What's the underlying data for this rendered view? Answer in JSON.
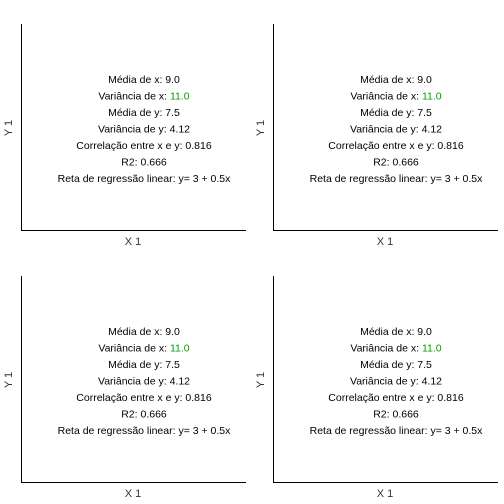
{
  "chart_data": [
    {
      "type": "scatter",
      "xlabel": "X 1",
      "ylabel": "Y 1",
      "stats": {
        "mean_x": {
          "label": "Média de x: ",
          "value": "9.0"
        },
        "var_x": {
          "label": "Variância de x: ",
          "value": "11.0"
        },
        "mean_y": {
          "label": "Média de y: ",
          "value": "7.5"
        },
        "var_y": {
          "label": "Variância de y: ",
          "value": "4.12"
        },
        "corr": {
          "label": "Correlação entre x e y: ",
          "value": "0.816"
        },
        "r2": {
          "label": "R2: ",
          "value": "0.666"
        },
        "reg": {
          "label": "Reta de regressão linear: ",
          "value": "y= 3 + 0.5x"
        }
      }
    },
    {
      "type": "scatter",
      "xlabel": "X 1",
      "ylabel": "Y 1",
      "stats": {
        "mean_x": {
          "label": "Média de x: ",
          "value": "9.0"
        },
        "var_x": {
          "label": "Variância de x: ",
          "value": "11.0"
        },
        "mean_y": {
          "label": "Média de y: ",
          "value": "7.5"
        },
        "var_y": {
          "label": "Variância de y: ",
          "value": "4.12"
        },
        "corr": {
          "label": "Correlação entre x e y: ",
          "value": "0.816"
        },
        "r2": {
          "label": "R2: ",
          "value": "0.666"
        },
        "reg": {
          "label": "Reta de regressão linear: ",
          "value": "y= 3 + 0.5x"
        }
      }
    },
    {
      "type": "scatter",
      "xlabel": "X 1",
      "ylabel": "Y 1",
      "stats": {
        "mean_x": {
          "label": "Média de x: ",
          "value": "9.0"
        },
        "var_x": {
          "label": "Variância de x: ",
          "value": "11.0"
        },
        "mean_y": {
          "label": "Média de y: ",
          "value": "7.5"
        },
        "var_y": {
          "label": "Variância de y: ",
          "value": "4.12"
        },
        "corr": {
          "label": "Correlação entre x e y: ",
          "value": "0.816"
        },
        "r2": {
          "label": "R2: ",
          "value": "0.666"
        },
        "reg": {
          "label": "Reta de regressão linear: ",
          "value": "y= 3 + 0.5x"
        }
      }
    },
    {
      "type": "scatter",
      "xlabel": "X 1",
      "ylabel": "Y 1",
      "stats": {
        "mean_x": {
          "label": "Média de x: ",
          "value": "9.0"
        },
        "var_x": {
          "label": "Variância de x: ",
          "value": "11.0"
        },
        "mean_y": {
          "label": "Média de y: ",
          "value": "7.5"
        },
        "var_y": {
          "label": "Variância de y: ",
          "value": "4.12"
        },
        "corr": {
          "label": "Correlação entre x e y: ",
          "value": "0.816"
        },
        "r2": {
          "label": "R2: ",
          "value": "0.666"
        },
        "reg": {
          "label": "Reta de regressão linear: ",
          "value": "y= 3 + 0.5x"
        }
      }
    }
  ],
  "colors": {
    "axis": "#000000",
    "text": "#000000",
    "label": "#333333",
    "highlight": "#00a000"
  }
}
